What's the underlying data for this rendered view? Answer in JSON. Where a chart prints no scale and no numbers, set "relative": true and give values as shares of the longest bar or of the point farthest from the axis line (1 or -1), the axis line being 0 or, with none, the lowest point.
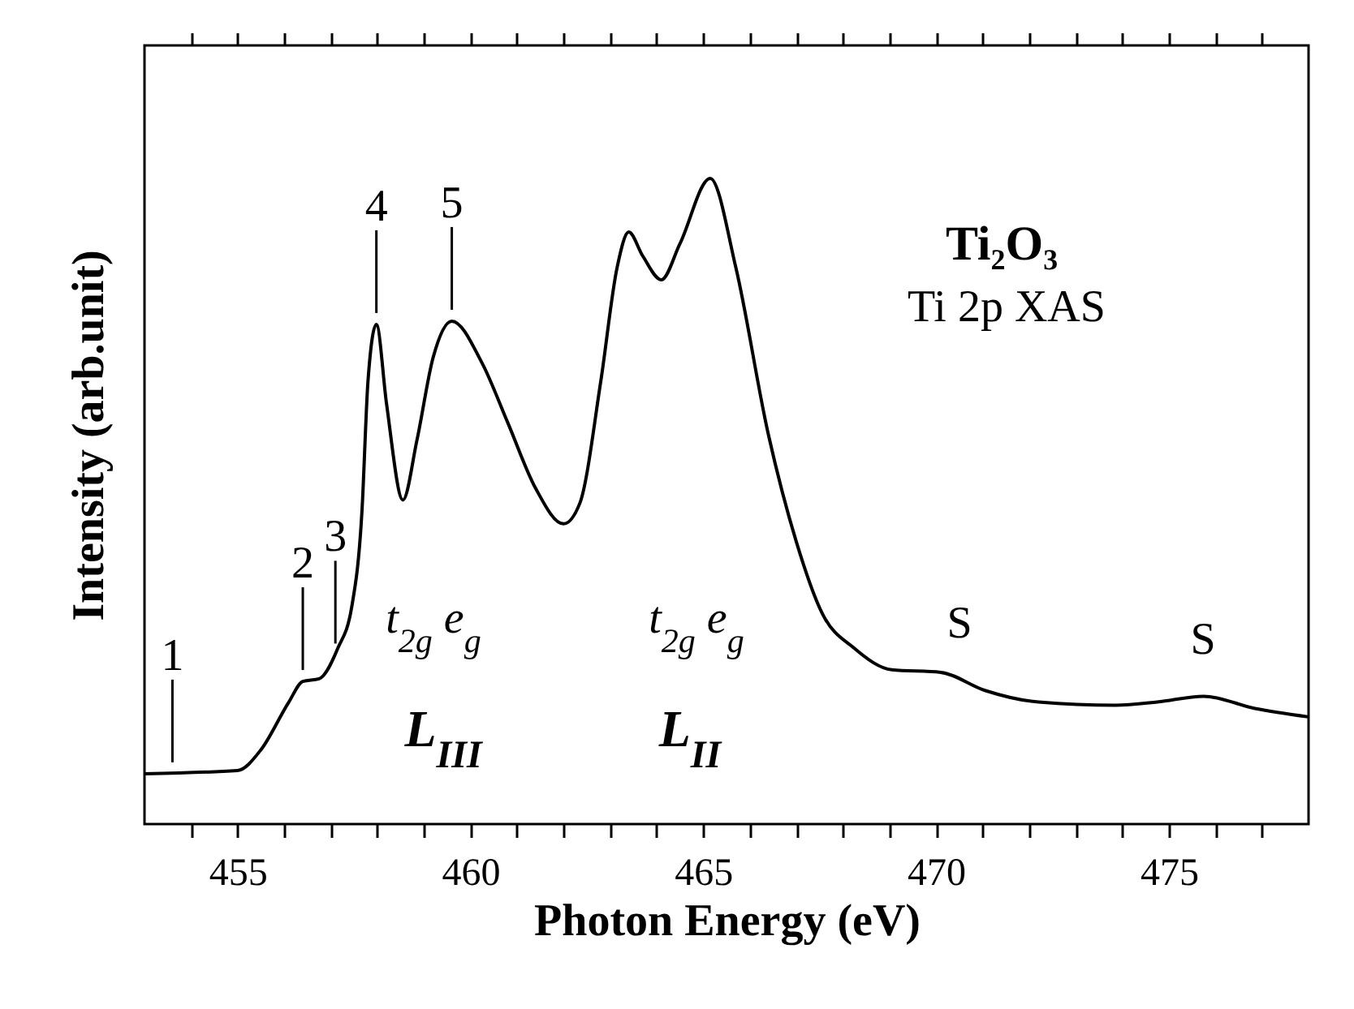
{
  "chart_data": {
    "type": "line",
    "relative": true,
    "xlabel": "Photon Energy (eV)",
    "ylabel": "Intensity (arb.unit)",
    "xlim": [
      453,
      478
    ],
    "xticks": [
      {
        "value": 454,
        "label": null
      },
      455,
      {
        "value": 456,
        "label": null
      },
      {
        "value": 457,
        "label": null
      },
      {
        "value": 458,
        "label": null
      },
      {
        "value": 459,
        "label": null
      },
      460,
      {
        "value": 461,
        "label": null
      },
      {
        "value": 462,
        "label": null
      },
      {
        "value": 463,
        "label": null
      },
      {
        "value": 464,
        "label": null
      },
      465,
      {
        "value": 466,
        "label": null
      },
      {
        "value": 467,
        "label": null
      },
      {
        "value": 468,
        "label": null
      },
      {
        "value": 469,
        "label": null
      },
      470,
      {
        "value": 471,
        "label": null
      },
      {
        "value": 472,
        "label": null
      },
      {
        "value": 473,
        "label": null
      },
      {
        "value": 474,
        "label": null
      },
      475,
      {
        "value": 476,
        "label": null
      },
      {
        "value": 477,
        "label": null
      }
    ],
    "x": [
      453.0,
      455.0,
      455.5,
      456.1,
      456.4,
      456.75,
      457.15,
      457.45,
      457.67,
      457.8,
      457.98,
      458.2,
      458.55,
      458.85,
      459.2,
      459.6,
      460.25,
      460.8,
      461.4,
      462.0,
      462.35,
      462.8,
      463.15,
      463.4,
      463.7,
      464.1,
      464.5,
      465.15,
      465.7,
      466.4,
      467.0,
      467.55,
      468.25,
      469.05,
      470.1,
      471.05,
      472.2,
      473.85,
      474.75,
      475.75,
      476.85,
      478.0
    ],
    "series": [
      {
        "color": "#000000",
        "values": [
          0.078,
          0.083,
          0.115,
          0.189,
          0.221,
          0.225,
          0.272,
          0.336,
          0.484,
          0.686,
          0.774,
          0.65,
          0.502,
          0.594,
          0.723,
          0.779,
          0.714,
          0.622,
          0.52,
          0.465,
          0.497,
          0.686,
          0.862,
          0.917,
          0.88,
          0.843,
          0.899,
          1.0,
          0.862,
          0.603,
          0.437,
          0.327,
          0.272,
          0.239,
          0.235,
          0.207,
          0.189,
          0.184,
          0.189,
          0.198,
          0.179,
          0.166
        ]
      }
    ],
    "marker": "none",
    "line_style": "solid",
    "annotations": [
      {
        "text": "1",
        "x": 453.6,
        "y": 0.078
      },
      {
        "text": "2",
        "x": 456.4,
        "y": 0.221
      },
      {
        "text": "3",
        "x": 457.1,
        "y": 0.262
      },
      {
        "text": "4",
        "x": 457.98,
        "y": 0.774
      },
      {
        "text": "5",
        "x": 459.6,
        "y": 0.779
      },
      "t$_{2g}$ e$_{g}$",
      "t$_{2g}$ e$_{g}$",
      "L$_{III}$",
      "L$_{II}$",
      "S",
      "S",
      "Ti₂O₃",
      "Ti 2p XAS"
    ]
  }
}
